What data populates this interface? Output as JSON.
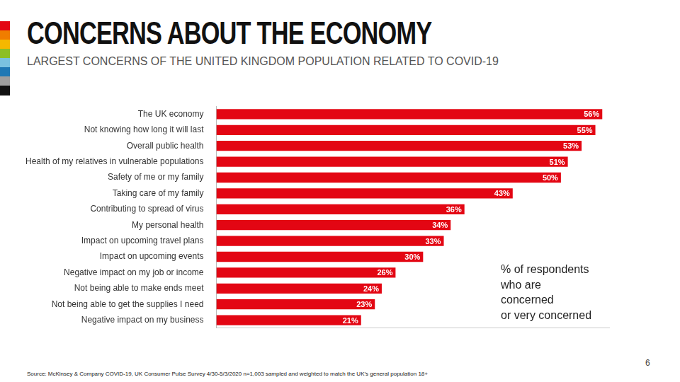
{
  "chart_data": {
    "type": "bar",
    "orientation": "horizontal",
    "title": "CONCERNS ABOUT THE ECONOMY",
    "subtitle": "LARGEST CONCERNS OF THE UNITED KINGDOM POPULATION RELATED TO COVID-19",
    "categories": [
      "The UK economy",
      "Not knowing how long it will last",
      "Overall public health",
      "Health of my relatives in vulnerable populations",
      "Safety of me or my family",
      "Taking care of my family",
      "Contributing to spread of virus",
      "My personal health",
      "Impact on upcoming travel plans",
      "Impact on upcoming events",
      "Negative impact on my job or income",
      "Not being able to make ends meet",
      "Not being able to get the supplies I need",
      "Negative impact on my business"
    ],
    "values": [
      56,
      55,
      53,
      51,
      50,
      43,
      36,
      34,
      33,
      30,
      26,
      24,
      23,
      21
    ],
    "value_labels": [
      "56%",
      "55%",
      "53%",
      "51%",
      "50%",
      "43%",
      "36%",
      "34%",
      "33%",
      "30%",
      "26%",
      "24%",
      "23%",
      "21%"
    ],
    "color": "#e30613",
    "xlim": [
      0,
      57
    ],
    "data_labels": true,
    "tick_labels": "y",
    "grid": false,
    "annotation": [
      "% of respondents",
      "who are",
      "concerned",
      "or very concerned"
    ],
    "source": "Source: McKinsey & Company COVID-19, UK Consumer Pulse Survey 4/30-5/3/2020 n=1,003 sampled and weighted to match the UK’s general population 18+",
    "page_number": "6"
  }
}
